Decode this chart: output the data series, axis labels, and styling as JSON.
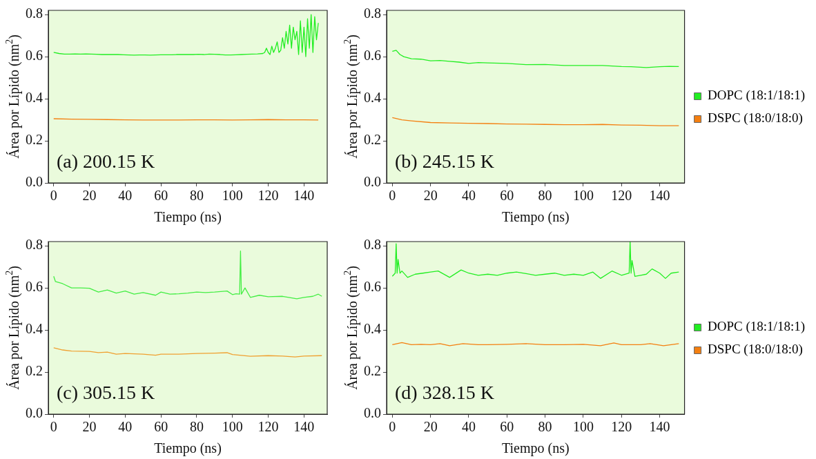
{
  "chart_data": [
    {
      "type": "line",
      "annotations": [
        "(a) 200.15 K"
      ],
      "xlabel": "Tiempo (ns)",
      "ylabel": "Área por Lípido (nm$^{2}$)",
      "xlim": [
        -3,
        153
      ],
      "xticks": [
        0,
        20,
        40,
        60,
        80,
        100,
        120,
        140
      ],
      "ylim": [
        0,
        0.82
      ],
      "yticks": [
        {
          "value": 0,
          "label": "0.0"
        },
        {
          "value": 0.2,
          "label": "0.2"
        },
        {
          "value": 0.4,
          "label": "0.4"
        },
        {
          "value": 0.6,
          "label": "0.6"
        },
        {
          "value": 0.8,
          "label": "0.8"
        }
      ],
      "grid": false,
      "legend": false,
      "marker": "none",
      "line_style": "solid",
      "series": [
        {
          "color": "#22ee22",
          "x": [
            0,
            3,
            6,
            9,
            12,
            15,
            18,
            21,
            24,
            27,
            30,
            33,
            36,
            39,
            42,
            45,
            48,
            51,
            54,
            57,
            60,
            63,
            66,
            69,
            72,
            75,
            78,
            81,
            84,
            87,
            90,
            93,
            96,
            99,
            102,
            105,
            108,
            111,
            114,
            117,
            118,
            119,
            120,
            121,
            122,
            123,
            124,
            125,
            126,
            127,
            128,
            129,
            130,
            131,
            132,
            133,
            134,
            135,
            136,
            137,
            138,
            139,
            140,
            141,
            142,
            143,
            144,
            145,
            146,
            147,
            148
          ],
          "values": [
            0.62,
            0.615,
            0.612,
            0.612,
            0.613,
            0.612,
            0.613,
            0.612,
            0.611,
            0.61,
            0.61,
            0.61,
            0.61,
            0.609,
            0.608,
            0.607,
            0.608,
            0.608,
            0.607,
            0.608,
            0.609,
            0.609,
            0.609,
            0.61,
            0.61,
            0.61,
            0.61,
            0.611,
            0.61,
            0.612,
            0.611,
            0.61,
            0.608,
            0.608,
            0.609,
            0.61,
            0.611,
            0.612,
            0.613,
            0.615,
            0.62,
            0.64,
            0.62,
            0.61,
            0.65,
            0.62,
            0.64,
            0.67,
            0.62,
            0.63,
            0.69,
            0.64,
            0.72,
            0.66,
            0.75,
            0.64,
            0.74,
            0.68,
            0.72,
            0.61,
            0.77,
            0.62,
            0.74,
            0.6,
            0.78,
            0.64,
            0.8,
            0.62,
            0.79,
            0.68,
            0.76
          ]
        },
        {
          "color": "#f47f10",
          "x": [
            0,
            10,
            20,
            30,
            40,
            50,
            60,
            70,
            80,
            90,
            100,
            110,
            120,
            130,
            140,
            148
          ],
          "values": [
            0.305,
            0.303,
            0.302,
            0.301,
            0.3,
            0.299,
            0.299,
            0.299,
            0.3,
            0.3,
            0.299,
            0.3,
            0.301,
            0.3,
            0.3,
            0.299
          ]
        }
      ]
    },
    {
      "type": "line",
      "annotations": [
        "(b) 245.15 K"
      ],
      "xlabel": "Tiempo (ns)",
      "ylabel": "Área por Lípido (nm$^{2}$)",
      "xlim": [
        -3,
        153
      ],
      "xticks": [
        0,
        20,
        40,
        60,
        80,
        100,
        120,
        140
      ],
      "ylim": [
        0,
        0.82
      ],
      "yticks": [
        {
          "value": 0,
          "label": "0.0"
        },
        {
          "value": 0.2,
          "label": "0.2"
        },
        {
          "value": 0.4,
          "label": "0.4"
        },
        {
          "value": 0.6,
          "label": "0.6"
        },
        {
          "value": 0.8,
          "label": "0.8"
        }
      ],
      "grid": false,
      "legend": "right",
      "marker": "none",
      "line_style": "solid",
      "series": [
        {
          "name": "DOPC (18:1/18:1)",
          "color": "#22ee22",
          "x": [
            0,
            2,
            4,
            6,
            10,
            15,
            20,
            25,
            30,
            35,
            40,
            45,
            50,
            60,
            70,
            80,
            90,
            100,
            110,
            120,
            125,
            133,
            140,
            145,
            150
          ],
          "values": [
            0.625,
            0.63,
            0.61,
            0.6,
            0.59,
            0.588,
            0.58,
            0.582,
            0.578,
            0.574,
            0.568,
            0.572,
            0.57,
            0.568,
            0.562,
            0.563,
            0.558,
            0.558,
            0.558,
            0.553,
            0.552,
            0.548,
            0.552,
            0.554,
            0.553
          ]
        },
        {
          "name": "DSPC (18:0/18:0)",
          "color": "#f47f10",
          "x": [
            0,
            5,
            10,
            20,
            30,
            40,
            50,
            60,
            70,
            80,
            90,
            100,
            110,
            120,
            130,
            140,
            150
          ],
          "values": [
            0.31,
            0.3,
            0.295,
            0.287,
            0.285,
            0.283,
            0.282,
            0.28,
            0.279,
            0.278,
            0.277,
            0.277,
            0.278,
            0.275,
            0.274,
            0.272,
            0.272
          ]
        }
      ]
    },
    {
      "type": "line",
      "annotations": [
        "(c) 305.15 K"
      ],
      "xlabel": "Tiempo (ns)",
      "ylabel": "Área por Lípido (nm$^{2}$)",
      "xlim": [
        -3,
        153
      ],
      "xticks": [
        0,
        20,
        40,
        60,
        80,
        100,
        120,
        140
      ],
      "ylim": [
        0,
        0.82
      ],
      "yticks": [
        {
          "value": 0,
          "label": "0.0"
        },
        {
          "value": 0.2,
          "label": "0.2"
        },
        {
          "value": 0.4,
          "label": "0.4"
        },
        {
          "value": 0.6,
          "label": "0.6"
        },
        {
          "value": 0.8,
          "label": "0.8"
        }
      ],
      "grid": false,
      "legend": false,
      "marker": "none",
      "line_style": "solid",
      "series": [
        {
          "color": "#44ee44",
          "x": [
            0,
            1,
            5,
            10,
            15,
            20,
            25,
            30,
            35,
            40,
            45,
            50,
            57,
            60,
            65,
            70,
            75,
            80,
            85,
            90,
            97,
            100,
            102,
            104,
            104.5,
            105,
            107,
            110,
            115,
            120,
            128,
            136,
            140,
            145,
            148,
            150
          ],
          "values": [
            0.655,
            0.63,
            0.62,
            0.6,
            0.6,
            0.598,
            0.58,
            0.59,
            0.575,
            0.585,
            0.57,
            0.578,
            0.565,
            0.58,
            0.57,
            0.572,
            0.575,
            0.58,
            0.578,
            0.58,
            0.585,
            0.568,
            0.572,
            0.57,
            0.775,
            0.57,
            0.6,
            0.555,
            0.565,
            0.558,
            0.56,
            0.548,
            0.555,
            0.56,
            0.57,
            0.56
          ]
        },
        {
          "color": "#f0a030",
          "x": [
            0,
            5,
            10,
            20,
            25,
            30,
            35,
            40,
            50,
            57,
            60,
            70,
            80,
            90,
            97,
            100,
            110,
            120,
            128,
            135,
            140,
            150
          ],
          "values": [
            0.315,
            0.305,
            0.3,
            0.298,
            0.292,
            0.295,
            0.285,
            0.288,
            0.285,
            0.28,
            0.285,
            0.285,
            0.288,
            0.29,
            0.292,
            0.283,
            0.275,
            0.278,
            0.276,
            0.272,
            0.276,
            0.278
          ]
        }
      ]
    },
    {
      "type": "line",
      "annotations": [
        "(d) 328.15 K"
      ],
      "xlabel": "Tiempo (ns)",
      "ylabel": "Área por Lípido (nm$^{2}$)",
      "xlim": [
        -3,
        153
      ],
      "xticks": [
        0,
        20,
        40,
        60,
        80,
        100,
        120,
        140
      ],
      "ylim": [
        0,
        0.82
      ],
      "yticks": [
        {
          "value": 0,
          "label": "0.0"
        },
        {
          "value": 0.2,
          "label": "0.2"
        },
        {
          "value": 0.4,
          "label": "0.4"
        },
        {
          "value": 0.6,
          "label": "0.6"
        },
        {
          "value": 0.8,
          "label": "0.8"
        }
      ],
      "grid": false,
      "legend": "right",
      "marker": "none",
      "line_style": "solid",
      "series": [
        {
          "name": "DOPC (18:1/18:1)",
          "color": "#22ee22",
          "x": [
            0,
            1.5,
            2,
            2.5,
            3,
            4,
            5,
            8,
            12,
            16,
            20,
            24,
            30,
            36,
            40,
            45,
            50,
            55,
            60,
            65,
            70,
            75,
            80,
            85,
            90,
            95,
            100,
            105,
            109,
            115,
            120,
            124,
            124.5,
            125,
            125.5,
            127,
            130,
            133,
            136,
            140,
            143,
            146,
            150
          ],
          "values": [
            0.655,
            0.67,
            0.81,
            0.67,
            0.735,
            0.67,
            0.68,
            0.65,
            0.665,
            0.67,
            0.675,
            0.68,
            0.65,
            0.685,
            0.67,
            0.66,
            0.665,
            0.66,
            0.67,
            0.675,
            0.668,
            0.66,
            0.665,
            0.67,
            0.66,
            0.665,
            0.66,
            0.675,
            0.645,
            0.68,
            0.66,
            0.67,
            0.82,
            0.67,
            0.73,
            0.655,
            0.66,
            0.665,
            0.69,
            0.67,
            0.645,
            0.67,
            0.675
          ]
        },
        {
          "name": "DSPC (18:0/18:0)",
          "color": "#f47f10",
          "x": [
            0,
            5,
            10,
            15,
            20,
            25,
            30,
            37,
            45,
            50,
            60,
            70,
            80,
            90,
            100,
            109,
            116,
            120,
            130,
            135,
            142,
            150
          ],
          "values": [
            0.33,
            0.34,
            0.33,
            0.332,
            0.33,
            0.335,
            0.325,
            0.335,
            0.33,
            0.33,
            0.332,
            0.335,
            0.33,
            0.33,
            0.332,
            0.325,
            0.338,
            0.33,
            0.33,
            0.335,
            0.325,
            0.335
          ]
        }
      ]
    }
  ]
}
